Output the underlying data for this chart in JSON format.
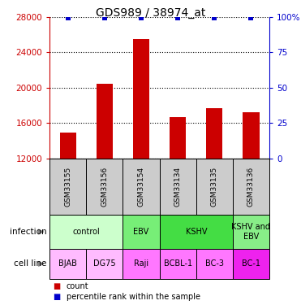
{
  "title": "GDS989 / 38974_at",
  "samples": [
    "GSM33155",
    "GSM33156",
    "GSM33154",
    "GSM33134",
    "GSM33135",
    "GSM33136"
  ],
  "counts": [
    14900,
    20400,
    25500,
    16700,
    17700,
    17200
  ],
  "percentile_value": 99,
  "ylim_left": [
    12000,
    28000
  ],
  "ylim_right": [
    0,
    100
  ],
  "yticks_left": [
    12000,
    16000,
    20000,
    24000,
    28000
  ],
  "yticks_right": [
    0,
    25,
    50,
    75,
    100
  ],
  "bar_color": "#cc0000",
  "percentile_color": "#0000cc",
  "gsm_bg_color": "#cccccc",
  "infection_groups": [
    {
      "label": "control",
      "start": 0,
      "end": 2,
      "color": "#ccffcc"
    },
    {
      "label": "EBV",
      "start": 2,
      "end": 3,
      "color": "#77ee77"
    },
    {
      "label": "KSHV",
      "start": 3,
      "end": 5,
      "color": "#44dd44"
    },
    {
      "label": "KSHV and\nEBV",
      "start": 5,
      "end": 6,
      "color": "#88ee88"
    }
  ],
  "cellline_groups": [
    {
      "label": "BJAB",
      "start": 0,
      "end": 1,
      "color": "#ffbbff"
    },
    {
      "label": "DG75",
      "start": 1,
      "end": 2,
      "color": "#ffbbff"
    },
    {
      "label": "Raji",
      "start": 2,
      "end": 3,
      "color": "#ff77ff"
    },
    {
      "label": "BCBL-1",
      "start": 3,
      "end": 4,
      "color": "#ff77ff"
    },
    {
      "label": "BC-3",
      "start": 4,
      "end": 5,
      "color": "#ff77ff"
    },
    {
      "label": "BC-1",
      "start": 5,
      "end": 6,
      "color": "#ee22ee"
    }
  ],
  "infection_row_label": "infection",
  "cellline_row_label": "cell line",
  "legend_count_label": "count",
  "legend_pct_label": "percentile rank within the sample",
  "title_fontsize": 10,
  "tick_fontsize": 7.5,
  "bar_width": 0.45,
  "n_samples": 6
}
